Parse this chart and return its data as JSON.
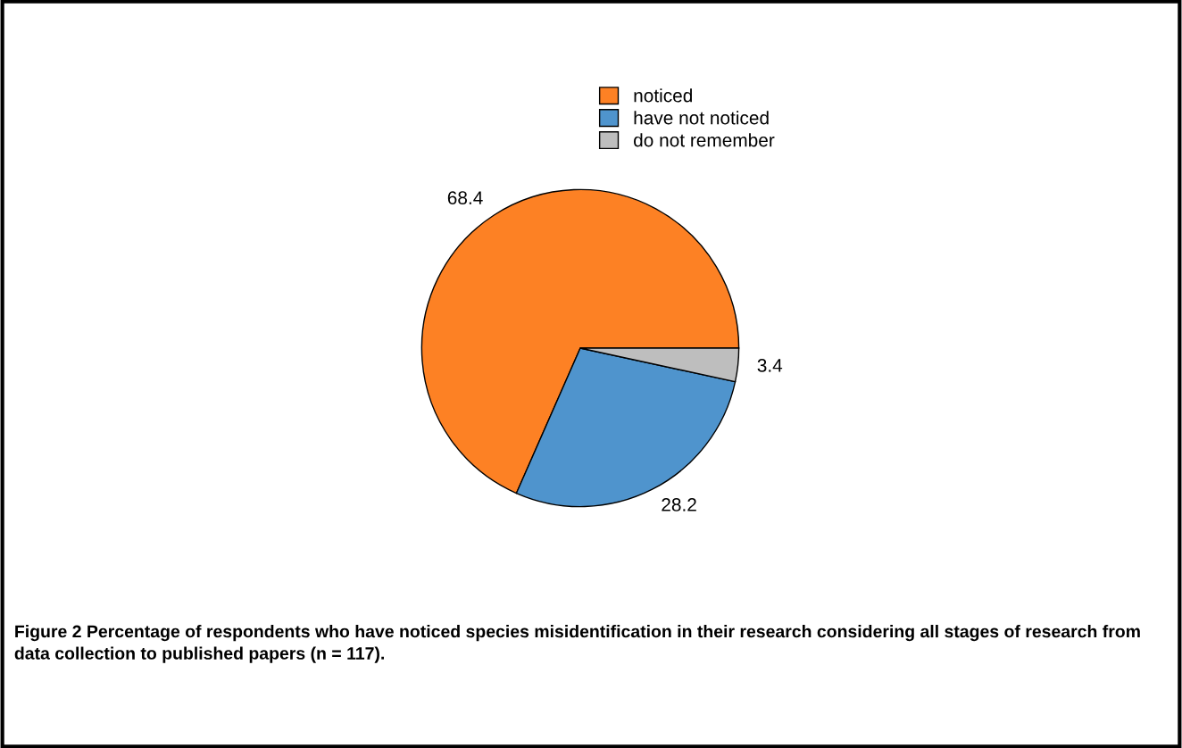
{
  "chart_data": {
    "type": "pie",
    "categories": [
      "noticed",
      "have not noticed",
      "do not remember"
    ],
    "values": [
      68.4,
      28.2,
      3.4
    ],
    "colors": [
      "#fd8124",
      "#4f94cd",
      "#bebebe"
    ],
    "data_labels": true,
    "legend": "top",
    "annotations": [
      "Figure 2 Percentage of respondents who have noticed species misidentification in their research considering all stages of research from data collection to published papers (n = 117)."
    ]
  }
}
